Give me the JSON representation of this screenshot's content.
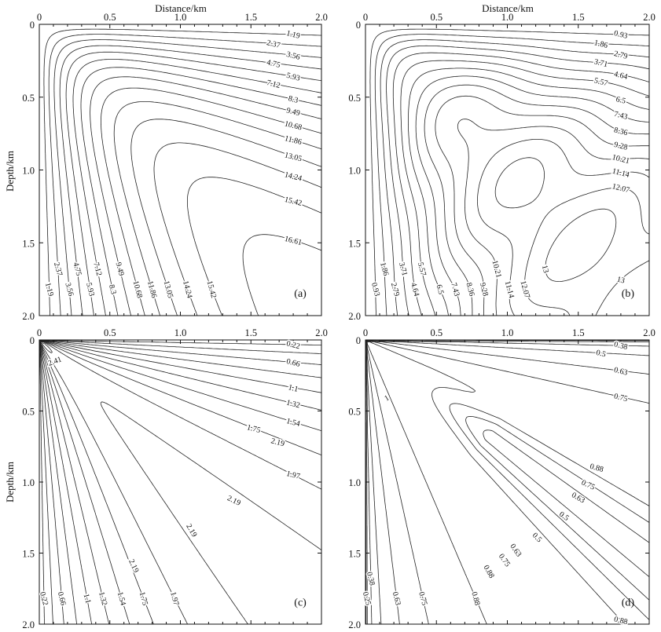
{
  "chart_data": [
    {
      "panel": "(a)",
      "type": "contour",
      "xlabel": "Distance/km",
      "ylabel": "Depth/km",
      "xlim": [
        0,
        2
      ],
      "ylim": [
        0,
        2
      ],
      "y_inverted": true,
      "x_axis_position": "top",
      "xticks": [
        "0",
        "0.5",
        "1.0",
        "1.5",
        "2.0"
      ],
      "yticks": [
        "0",
        "0.5",
        "1.0",
        "1.5",
        "2.0"
      ],
      "levels": [
        1.19,
        2.37,
        3.56,
        4.75,
        5.93,
        7.12,
        8.3,
        9.49,
        10.68,
        11.86,
        13.05,
        14.24,
        15.42,
        16.61
      ],
      "right_labels": [
        "1.19",
        "2.37",
        "3.56",
        "4.75",
        "5.93",
        "7.12",
        "8.3",
        "9.49",
        "10.68",
        "11.86",
        "13.05",
        "14.24",
        "15.42",
        "16.61"
      ],
      "bottom_labels": [
        "1.19",
        "2.37",
        "3.56",
        "4.75",
        "5.93",
        "7.12",
        "8.3",
        "9.49",
        "10.68",
        "11.86",
        "13.05",
        "14.24",
        "15.42"
      ],
      "interior_labels": []
    },
    {
      "panel": "(b)",
      "type": "contour",
      "xlabel": "Distance/km",
      "ylabel": "",
      "xlim": [
        0,
        2
      ],
      "ylim": [
        0,
        2
      ],
      "y_inverted": true,
      "x_axis_position": "top",
      "xticks": [
        "0",
        "0.5",
        "1.0",
        "1.5",
        "2.0"
      ],
      "yticks": [
        "0",
        "0.5",
        "1.0",
        "1.5",
        "2.0"
      ],
      "levels": [
        0.93,
        1.86,
        2.79,
        3.71,
        4.64,
        5.57,
        6.5,
        7.43,
        8.36,
        9.28,
        10.21,
        11.14,
        12.07,
        13
      ],
      "right_labels": [
        "0.93",
        "1.86",
        "2.79",
        "3.71",
        "4.64",
        "5.57",
        "6.5",
        "7.43",
        "8.36",
        "9.28",
        "10.21",
        "11.14",
        "12.07",
        "13"
      ],
      "bottom_labels": [
        "0.93",
        "1.86",
        "2.79",
        "3.71",
        "4.64",
        "5.57",
        "6.5",
        "7.43",
        "8.36",
        "9.28",
        "10.21",
        "11.14",
        "12.07",
        "13"
      ],
      "interior_labels": []
    },
    {
      "panel": "(c)",
      "type": "contour",
      "xlabel": "",
      "ylabel": "Depth/km",
      "xlim": [
        0,
        2
      ],
      "ylim": [
        0,
        2
      ],
      "y_inverted": true,
      "x_axis_position": "top",
      "xticks": [
        "0",
        "0.5",
        "1.0",
        "1.5",
        "2.0"
      ],
      "yticks": [
        "0",
        "0.5",
        "1.0",
        "1.5",
        "2.0"
      ],
      "levels": [
        0.22,
        0.44,
        0.66,
        0.88,
        1.1,
        1.32,
        1.54,
        1.75,
        1.97,
        2.19,
        2.41
      ],
      "right_labels": [
        "0.22",
        "0.66",
        "1.1",
        "1.32",
        "1.54",
        "1.75",
        "1.97"
      ],
      "bottom_labels": [
        "0.22",
        "0.66",
        "1.1",
        "1.32",
        "1.54",
        "1.75",
        "1.97"
      ],
      "interior_labels": [
        "2.41",
        "2.19",
        "2.19",
        "2.19",
        "2.19"
      ]
    },
    {
      "panel": "(d)",
      "type": "contour",
      "xlabel": "",
      "ylabel": "",
      "xlim": [
        0,
        2
      ],
      "ylim": [
        0,
        2
      ],
      "y_inverted": true,
      "x_axis_position": "top",
      "xticks": [
        "0",
        "0.5",
        "1.0",
        "1.5",
        "2.0"
      ],
      "yticks": [
        "0",
        "0.5",
        "1.0",
        "1.5",
        "2.0"
      ],
      "levels": [
        0.13,
        0.25,
        0.38,
        0.5,
        0.63,
        0.75,
        0.88,
        1
      ],
      "right_labels": [
        "0.38",
        "0.5",
        "0.63",
        "0.75",
        "0.88"
      ],
      "bottom_labels": [
        "0.25",
        "0.38",
        "0.63",
        "0.75",
        "0.88"
      ],
      "interior_labels": [
        "0.88",
        "0.75",
        "0.63",
        "0.5",
        "0.5",
        "0.63",
        "0.75",
        "0.88",
        "1"
      ]
    }
  ]
}
